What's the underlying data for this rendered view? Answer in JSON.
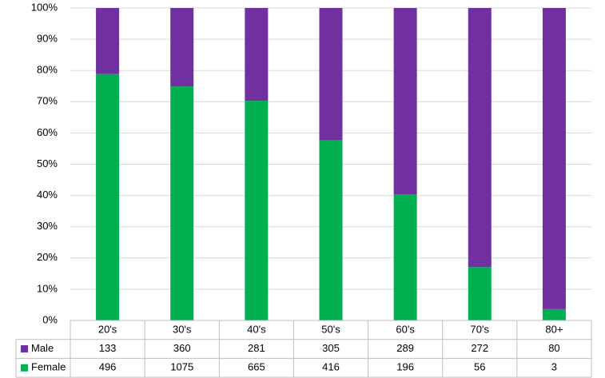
{
  "chart_data": {
    "type": "bar",
    "stacking": "percent",
    "categories": [
      "20's",
      "30's",
      "40's",
      "50's",
      "60's",
      "70's",
      "80+"
    ],
    "series": [
      {
        "name": "Male",
        "color": "#7030a0",
        "values": [
          133,
          360,
          281,
          305,
          289,
          272,
          80
        ]
      },
      {
        "name": "Female",
        "color": "#00b050",
        "values": [
          496,
          1075,
          665,
          416,
          196,
          56,
          3
        ]
      }
    ],
    "ylim": [
      0,
      100
    ],
    "yticks": [
      {
        "value": 0,
        "label": "0%"
      },
      {
        "value": 10,
        "label": "10%"
      },
      {
        "value": 20,
        "label": "20%"
      },
      {
        "value": 30,
        "label": "30%"
      },
      {
        "value": 40,
        "label": "40%"
      },
      {
        "value": 50,
        "label": "50%"
      },
      {
        "value": 60,
        "label": "60%"
      },
      {
        "value": 70,
        "label": "70%"
      },
      {
        "value": 80,
        "label": "80%"
      },
      {
        "value": 90,
        "label": "90%"
      },
      {
        "value": 100,
        "label": "100%"
      }
    ],
    "grid": true,
    "data_table": true
  }
}
